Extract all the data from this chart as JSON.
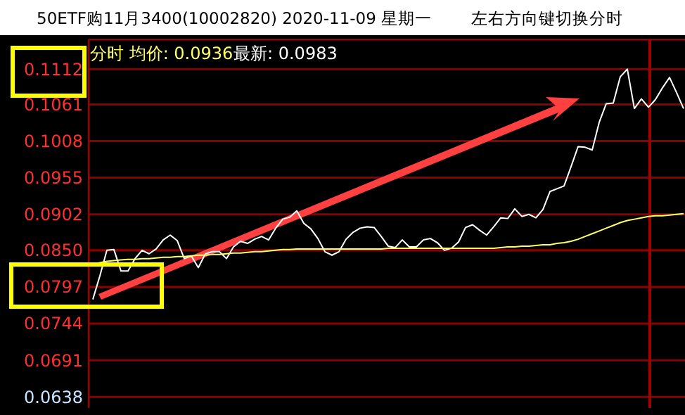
{
  "chart_data": {
    "type": "line",
    "title": "50ETF购11月3400(10002820) 2020-11-09 星期一",
    "subtitle": "左右方向键切换分时",
    "annotations": [
      "分时 均价: 0.0936",
      "最新: 0.0983"
    ],
    "categories": [
      null,
      null,
      null,
      null,
      null,
      null,
      null,
      null,
      null,
      null,
      null,
      null,
      null,
      null,
      null,
      null,
      null,
      null,
      null,
      null,
      null,
      null,
      null,
      null,
      null,
      null,
      null,
      null,
      null,
      null,
      null,
      null,
      null,
      null,
      null,
      null,
      null,
      null,
      null,
      null,
      null,
      null,
      null,
      null,
      null,
      null,
      null,
      null,
      null,
      null,
      null,
      null,
      null,
      null,
      null,
      null,
      null,
      null,
      null,
      null,
      null,
      null,
      null,
      null,
      null,
      null,
      null,
      null,
      null,
      null,
      null,
      null,
      null,
      null,
      null,
      null,
      null,
      null,
      null,
      null,
      null,
      null,
      null,
      null,
      null
    ],
    "ylim": [
      0.0622,
      0.1155
    ],
    "yticks": [
      {
        "value": 0.0638,
        "label": "0.0638"
      },
      {
        "value": 0.0691,
        "label": "0.0691"
      },
      {
        "value": 0.0744,
        "label": "0.0744"
      },
      {
        "value": 0.0797,
        "label": "0.0797"
      },
      {
        "value": 0.085,
        "label": "0.0850"
      },
      {
        "value": 0.0902,
        "label": "0.0902"
      },
      {
        "value": 0.0955,
        "label": "0.0955"
      },
      {
        "value": 0.1008,
        "label": "0.1008"
      },
      {
        "value": 0.1061,
        "label": "0.1061"
      },
      {
        "value": 0.1112,
        "label": "0.1112"
      }
    ],
    "tick_labels": "y",
    "grid": "y",
    "marker": "none",
    "line_style": "solid",
    "series": [
      {
        "color": "#ffffff",
        "values": [
          0.0779,
          0.0813,
          0.085,
          0.0851,
          0.082,
          0.082,
          0.0838,
          0.085,
          0.0845,
          0.0852,
          0.0865,
          0.0872,
          0.0864,
          0.0838,
          0.0842,
          0.0825,
          0.0845,
          0.0848,
          0.0848,
          0.0838,
          0.0855,
          0.0863,
          0.086,
          0.0866,
          0.087,
          0.0865,
          0.0882,
          0.0895,
          0.0898,
          0.0907,
          0.0889,
          0.0881,
          0.0867,
          0.0848,
          0.0843,
          0.0848,
          0.0866,
          0.0876,
          0.0882,
          0.0884,
          0.0883,
          0.087,
          0.0856,
          0.0854,
          0.0865,
          0.0855,
          0.0855,
          0.0865,
          0.0867,
          0.0861,
          0.085,
          0.0853,
          0.0862,
          0.0883,
          0.0887,
          0.0879,
          0.0872,
          0.0884,
          0.0897,
          0.0896,
          0.091,
          0.0899,
          0.0902,
          0.0897,
          0.0909,
          0.0935,
          0.0939,
          0.0943,
          0.0971,
          0.1,
          0.0999,
          0.0995,
          0.1035,
          0.1062,
          0.1063,
          0.1101,
          0.1112,
          0.1055,
          0.1069,
          0.1057,
          0.1068,
          0.1085,
          0.11,
          0.1078,
          0.1055
        ]
      },
      {
        "color": "#ffff66",
        "values": [
          0.083,
          0.0832,
          0.0834,
          0.0835,
          0.0836,
          0.0837,
          0.0837,
          0.0838,
          0.0838,
          0.0839,
          0.084,
          0.084,
          0.0841,
          0.0841,
          0.0842,
          0.0843,
          0.0843,
          0.0844,
          0.0844,
          0.0845,
          0.0846,
          0.0846,
          0.0847,
          0.0848,
          0.0848,
          0.0849,
          0.085,
          0.0851,
          0.0851,
          0.0852,
          0.0852,
          0.0852,
          0.0852,
          0.0852,
          0.0852,
          0.0852,
          0.0852,
          0.0852,
          0.0852,
          0.0852,
          0.0852,
          0.0852,
          0.0853,
          0.0853,
          0.0853,
          0.0853,
          0.0853,
          0.0853,
          0.0853,
          0.0853,
          0.0853,
          0.0853,
          0.0853,
          0.0853,
          0.0853,
          0.0853,
          0.0853,
          0.0853,
          0.0854,
          0.0855,
          0.0855,
          0.0856,
          0.0856,
          0.0857,
          0.0858,
          0.0858,
          0.086,
          0.0861,
          0.0863,
          0.0866,
          0.087,
          0.0874,
          0.0878,
          0.0882,
          0.0886,
          0.089,
          0.0893,
          0.0895,
          0.0897,
          0.0899,
          0.09,
          0.09,
          0.0901,
          0.0902,
          0.0903
        ]
      }
    ]
  }
}
